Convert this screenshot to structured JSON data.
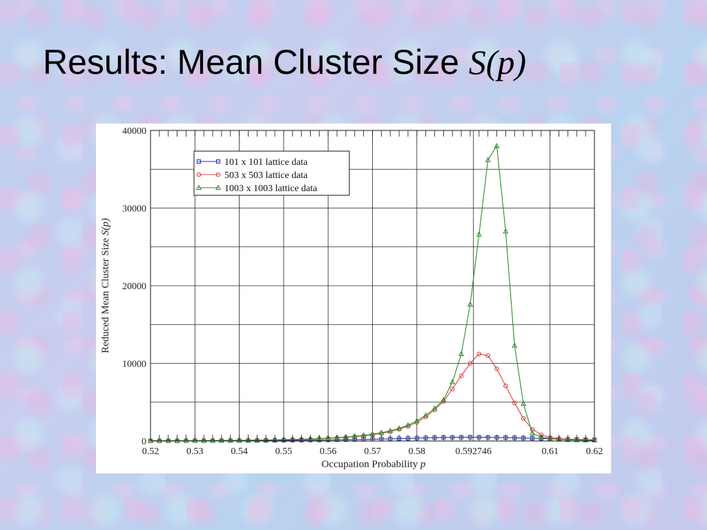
{
  "slide": {
    "title": "Results: Mean Cluster Size ",
    "title_italic": "S(p)"
  },
  "chart_data": {
    "type": "line",
    "title": "",
    "xlabel": "Occupation Probability ",
    "xlabel_italic": "p",
    "ylabel": "Reduced Mean Cluster Size ",
    "ylabel_italic": "S(p)",
    "xlim": [
      0.52,
      0.62
    ],
    "ylim": [
      0,
      40000
    ],
    "x_ticks": [
      0.52,
      0.53,
      0.54,
      0.55,
      0.56,
      0.57,
      0.58,
      0.592746,
      0.61,
      0.62
    ],
    "x_tick_labels": [
      "0.52",
      "0.53",
      "0.54",
      "0.55",
      "0.56",
      "0.57",
      "0.58",
      "0.592746",
      "0.61",
      "0.62"
    ],
    "y_ticks": [
      0,
      10000,
      20000,
      30000,
      40000
    ],
    "y_tick_labels": [
      "0",
      "10000",
      "20000",
      "30000",
      "40000"
    ],
    "grid": true,
    "legend_position": "top-left",
    "x": [
      0.52,
      0.522,
      0.524,
      0.526,
      0.528,
      0.53,
      0.532,
      0.534,
      0.536,
      0.538,
      0.54,
      0.542,
      0.544,
      0.546,
      0.548,
      0.55,
      0.552,
      0.554,
      0.556,
      0.558,
      0.56,
      0.562,
      0.564,
      0.566,
      0.568,
      0.57,
      0.572,
      0.574,
      0.576,
      0.578,
      0.58,
      0.582,
      0.584,
      0.586,
      0.588,
      0.59,
      0.592,
      0.594,
      0.596,
      0.598,
      0.6,
      0.602,
      0.604,
      0.606,
      0.608,
      0.61,
      0.612,
      0.614,
      0.616,
      0.618,
      0.62
    ],
    "series": [
      {
        "name": "101 x 101 lattice data",
        "color": "#1f2fb0",
        "marker": "square",
        "values": [
          20,
          22,
          24,
          26,
          28,
          30,
          33,
          36,
          40,
          44,
          48,
          53,
          58,
          64,
          70,
          78,
          86,
          95,
          105,
          117,
          130,
          145,
          160,
          178,
          198,
          220,
          245,
          270,
          300,
          330,
          365,
          400,
          430,
          455,
          470,
          480,
          485,
          480,
          470,
          455,
          435,
          410,
          385,
          355,
          325,
          295,
          265,
          235,
          205,
          180,
          155
        ]
      },
      {
        "name": "503 x 503 lattice data",
        "color": "#d9434a",
        "marker": "circle",
        "values": [
          25,
          28,
          31,
          35,
          39,
          44,
          50,
          56,
          64,
          72,
          82,
          93,
          106,
          120,
          137,
          156,
          180,
          207,
          240,
          280,
          330,
          390,
          460,
          550,
          660,
          800,
          980,
          1200,
          1500,
          1900,
          2400,
          3100,
          4000,
          5100,
          6700,
          8400,
          10000,
          11200,
          11000,
          9300,
          7100,
          4900,
          2900,
          1500,
          800,
          450,
          300,
          220,
          170,
          140,
          120
        ]
      },
      {
        "name": "1003 x 1003 lattice data",
        "color": "#2e8a2e",
        "marker": "triangle",
        "values": [
          25,
          28,
          31,
          35,
          40,
          45,
          51,
          58,
          66,
          75,
          86,
          98,
          112,
          128,
          147,
          169,
          195,
          226,
          263,
          307,
          360,
          425,
          505,
          600,
          720,
          870,
          1060,
          1300,
          1620,
          2030,
          2600,
          3300,
          4200,
          5300,
          7600,
          11200,
          17600,
          26600,
          36200,
          38000,
          27000,
          12300,
          4800,
          1000,
          500,
          300,
          200,
          150,
          120,
          100,
          90
        ]
      }
    ]
  }
}
